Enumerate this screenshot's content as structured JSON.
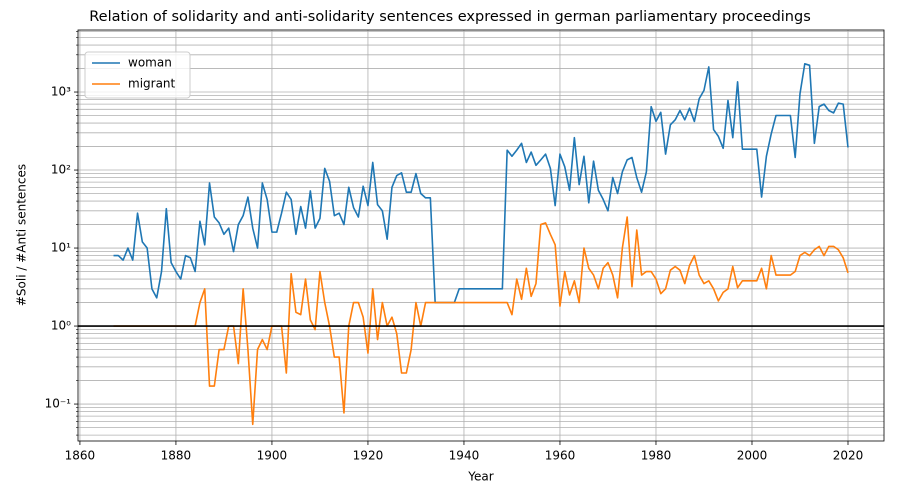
{
  "chart_data": {
    "type": "line",
    "title": "Relation of solidarity and anti-solidarity sentences expressed in german parliamentary proceedings",
    "xlabel": "Year",
    "ylabel": "#Soli / #Anti sentences",
    "log_y": true,
    "grid": true,
    "legend": "upper left",
    "x": [
      1867,
      1868,
      1869,
      1870,
      1871,
      1872,
      1873,
      1874,
      1875,
      1876,
      1877,
      1878,
      1879,
      1880,
      1881,
      1882,
      1883,
      1884,
      1885,
      1886,
      1887,
      1888,
      1889,
      1890,
      1891,
      1892,
      1893,
      1894,
      1895,
      1896,
      1897,
      1898,
      1899,
      1900,
      1901,
      1902,
      1903,
      1904,
      1905,
      1906,
      1907,
      1908,
      1909,
      1910,
      1911,
      1912,
      1913,
      1914,
      1915,
      1916,
      1917,
      1918,
      1919,
      1920,
      1921,
      1922,
      1923,
      1924,
      1925,
      1926,
      1927,
      1928,
      1929,
      1930,
      1931,
      1932,
      1933,
      1934,
      1935,
      1936,
      1937,
      1938,
      1939,
      1940,
      1941,
      1942,
      1943,
      1944,
      1945,
      1946,
      1947,
      1948,
      1949,
      1950,
      1951,
      1952,
      1953,
      1954,
      1955,
      1956,
      1957,
      1958,
      1959,
      1960,
      1961,
      1962,
      1963,
      1964,
      1965,
      1966,
      1967,
      1968,
      1969,
      1970,
      1971,
      1972,
      1973,
      1974,
      1975,
      1976,
      1977,
      1978,
      1979,
      1980,
      1981,
      1982,
      1983,
      1984,
      1985,
      1986,
      1987,
      1988,
      1989,
      1990,
      1991,
      1992,
      1993,
      1994,
      1995,
      1996,
      1997,
      1998,
      1999,
      2000,
      2001,
      2002,
      2003,
      2004,
      2005,
      2006,
      2007,
      2008,
      2009,
      2010,
      2011,
      2012,
      2013,
      2014,
      2015,
      2016,
      2017,
      2018,
      2019,
      2020
    ],
    "series": [
      {
        "name": "woman",
        "color": "#1f77b4",
        "values": [
          8,
          8,
          7,
          10,
          7,
          28,
          12,
          10,
          3,
          2.3,
          5,
          32,
          6.5,
          5,
          4,
          8,
          7.5,
          5,
          22,
          11,
          68,
          25,
          21,
          15,
          18,
          9,
          20,
          26,
          45,
          18,
          10,
          68,
          42,
          16,
          16,
          28,
          52,
          42,
          15,
          34,
          18,
          54,
          18,
          24,
          105,
          72,
          26,
          28,
          20,
          60,
          33,
          25,
          62,
          35,
          125,
          36,
          30,
          13,
          60,
          85,
          92,
          52,
          52,
          90,
          50,
          44,
          44,
          2,
          2,
          2,
          2,
          2,
          3,
          3,
          3,
          3,
          3,
          3,
          3,
          3,
          3,
          3,
          180,
          150,
          180,
          220,
          125,
          170,
          115,
          135,
          160,
          105,
          35,
          160,
          110,
          55,
          260,
          65,
          150,
          38,
          130,
          55,
          42,
          30,
          80,
          50,
          95,
          135,
          145,
          80,
          52,
          95,
          650,
          420,
          550,
          160,
          380,
          440,
          580,
          440,
          620,
          420,
          820,
          1050,
          2100,
          330,
          270,
          190,
          780,
          260,
          1350,
          185,
          185,
          185,
          185,
          45,
          150,
          290,
          500,
          500,
          500,
          500,
          145,
          950,
          2300,
          2200,
          220,
          650,
          700,
          580,
          540,
          720,
          700,
          195
        ]
      },
      {
        "name": "migrant",
        "color": "#ff7f0e",
        "values": [
          1,
          1,
          1,
          1,
          1,
          1,
          1,
          1,
          1,
          1,
          1,
          1,
          1,
          1,
          1,
          1,
          1,
          1,
          2,
          3,
          0.17,
          0.17,
          0.5,
          0.5,
          1,
          1,
          0.33,
          3,
          0.5,
          0.055,
          0.5,
          0.67,
          0.5,
          1,
          1,
          1,
          0.25,
          4.7,
          1.5,
          1.4,
          4,
          1.2,
          0.9,
          5,
          2,
          1,
          0.4,
          0.4,
          0.077,
          1,
          2,
          2,
          1.3,
          0.45,
          3,
          0.67,
          2,
          1,
          1.3,
          0.8,
          0.25,
          0.25,
          0.5,
          2,
          1,
          2,
          2,
          2,
          2,
          2,
          2,
          2,
          2,
          2,
          2,
          2,
          2,
          2,
          2,
          2,
          2,
          2,
          2,
          1.4,
          4,
          2.2,
          5.5,
          2.4,
          3.5,
          20,
          21,
          15,
          11,
          1.8,
          5,
          2.5,
          3.8,
          2,
          10,
          5.5,
          4.5,
          3,
          5.5,
          6.5,
          4.5,
          2.3,
          10,
          25,
          3.2,
          17,
          4.5,
          5,
          5,
          4,
          2.6,
          3,
          5.2,
          5.8,
          5.2,
          3.5,
          6,
          8,
          4.5,
          3.5,
          3.8,
          3,
          2.1,
          2.7,
          3,
          5.8,
          3.1,
          3.8,
          3.8,
          3.8,
          3.8,
          5.5,
          3,
          8,
          4.5,
          4.5,
          4.5,
          4.5,
          5,
          8,
          8.8,
          8,
          9.5,
          10.5,
          8,
          10.5,
          10.5,
          9.5,
          7.5,
          4.8
        ]
      }
    ],
    "hline": 1,
    "hline_color": "#000000",
    "xlim": [
      1859.6,
      2027.5
    ],
    "xticks": [
      1860,
      1880,
      1900,
      1920,
      1940,
      1960,
      1980,
      2000,
      2020
    ],
    "ylim": [
      0.0336,
      6240
    ],
    "yticks": [
      {
        "value": 0.1,
        "label": "10⁻¹"
      },
      {
        "value": 1,
        "label": "10⁰"
      },
      {
        "value": 10,
        "label": "10¹"
      },
      {
        "value": 100,
        "label": "10²"
      },
      {
        "value": 1000,
        "label": "10³"
      }
    ],
    "y_minor_ticks": [
      0.04,
      0.05,
      0.06,
      0.07,
      0.08,
      0.09,
      0.2,
      0.3,
      0.4,
      0.5,
      0.6,
      0.7,
      0.8,
      0.9,
      2,
      3,
      4,
      5,
      6,
      7,
      8,
      9,
      20,
      30,
      40,
      50,
      60,
      70,
      80,
      90,
      200,
      300,
      400,
      500,
      600,
      700,
      800,
      900,
      2000,
      3000,
      4000,
      5000,
      6000
    ]
  }
}
